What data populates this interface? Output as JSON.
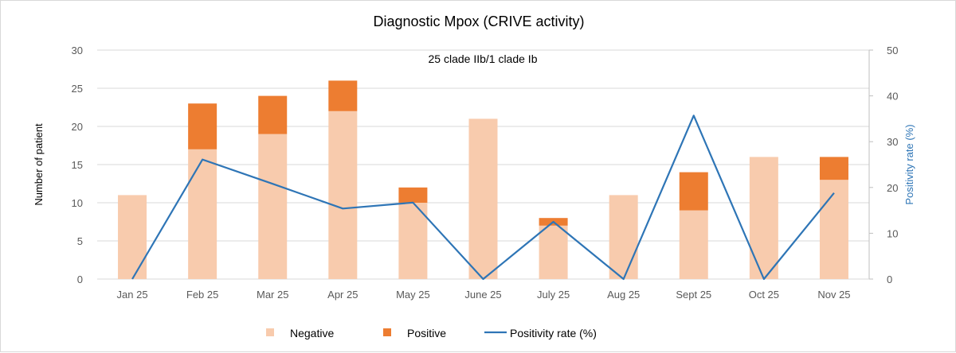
{
  "chart_data": {
    "type": "bar",
    "title": "Diagnostic Mpox (CRIVE activity)",
    "annotation": "25 clade IIb/1 clade Ib",
    "categories": [
      "Jan 25",
      "Feb 25",
      "Mar 25",
      "Apr 25",
      "May 25",
      "June 25",
      "July 25",
      "Aug 25",
      "Sept 25",
      "Oct 25",
      "Nov 25"
    ],
    "ylabel": "Number of patient",
    "ylim": [
      0,
      30
    ],
    "yticks": [
      0,
      5,
      10,
      15,
      20,
      25,
      30
    ],
    "y2label": "Positivity rate (%)",
    "y2lim": [
      0,
      50
    ],
    "y2ticks": [
      0,
      10,
      20,
      30,
      40,
      50
    ],
    "grid": true,
    "legend": "bottom",
    "stacked": true,
    "series": [
      {
        "name": "Negative",
        "type": "bar",
        "axis": "left",
        "color": "#F8CBAD",
        "values": [
          11,
          17,
          19,
          22,
          10,
          21,
          7,
          11,
          9,
          16,
          13
        ]
      },
      {
        "name": "Positive",
        "type": "bar",
        "axis": "left",
        "color": "#ED7D31",
        "values": [
          0,
          6,
          5,
          4,
          2,
          0,
          1,
          0,
          5,
          0,
          3
        ]
      },
      {
        "name": "Positivity rate (%)",
        "type": "line",
        "axis": "right",
        "color": "#2E75B6",
        "values": [
          0,
          26.1,
          20.8,
          15.4,
          16.7,
          0,
          12.5,
          0,
          35.7,
          0,
          18.8
        ]
      }
    ]
  }
}
